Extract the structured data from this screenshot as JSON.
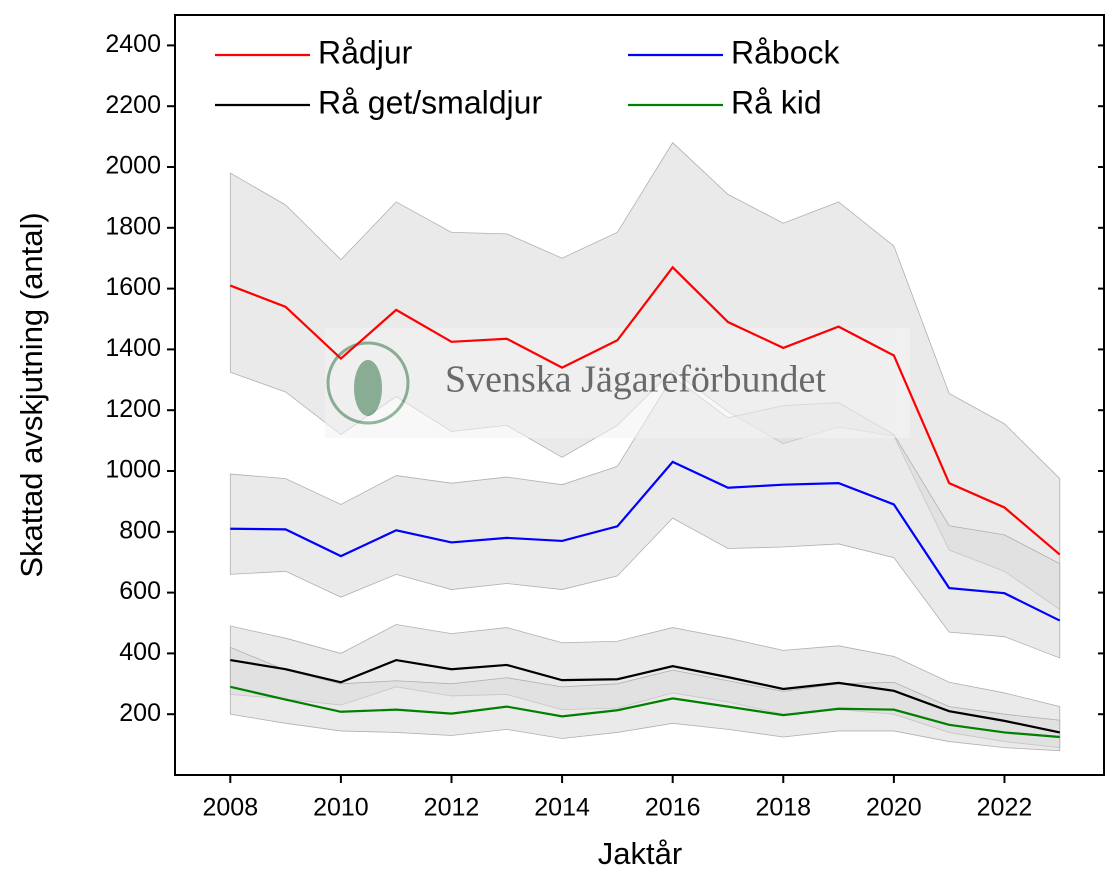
{
  "chart_data": {
    "type": "line",
    "x_label": "Jaktår",
    "y_label": "Skattad avskjutning (antal)",
    "watermark": "Svenska Jägareförbundet",
    "x": [
      2008,
      2009,
      2010,
      2011,
      2012,
      2013,
      2014,
      2015,
      2016,
      2017,
      2018,
      2019,
      2020,
      2021,
      2022,
      2023
    ],
    "xlim": [
      2007,
      2023.8
    ],
    "xticks": [
      2008,
      2010,
      2012,
      2014,
      2016,
      2018,
      2020,
      2022
    ],
    "ylim": [
      0,
      2500
    ],
    "yticks": [
      200,
      400,
      600,
      800,
      1000,
      1200,
      1400,
      1600,
      1800,
      2000,
      2200,
      2400
    ],
    "band_color": "#d8d8d8",
    "series": [
      {
        "name": "Rådjur",
        "color": "#ff0000",
        "values": [
          1610,
          1540,
          1370,
          1530,
          1425,
          1435,
          1340,
          1430,
          1670,
          1490,
          1405,
          1475,
          1380,
          960,
          880,
          725
        ],
        "upper": [
          1980,
          1875,
          1695,
          1885,
          1785,
          1780,
          1700,
          1785,
          2080,
          1910,
          1815,
          1885,
          1740,
          1255,
          1155,
          975
        ],
        "lower": [
          1325,
          1260,
          1120,
          1245,
          1130,
          1150,
          1045,
          1150,
          1330,
          1195,
          1090,
          1145,
          1115,
          740,
          670,
          545
        ]
      },
      {
        "name": "Råbock",
        "color": "#0000ff",
        "values": [
          810,
          808,
          720,
          805,
          765,
          780,
          770,
          818,
          1030,
          945,
          955,
          960,
          890,
          615,
          598,
          508
        ],
        "upper": [
          990,
          975,
          890,
          985,
          960,
          980,
          955,
          1015,
          1310,
          1175,
          1215,
          1225,
          1120,
          820,
          790,
          695
        ],
        "lower": [
          660,
          670,
          585,
          660,
          610,
          630,
          610,
          655,
          845,
          745,
          750,
          760,
          715,
          470,
          455,
          385
        ]
      },
      {
        "name": "Rå get/smaldjur",
        "color": "#000000",
        "values": [
          378,
          348,
          305,
          378,
          348,
          362,
          312,
          315,
          358,
          322,
          283,
          303,
          277,
          210,
          178,
          140
        ],
        "upper": [
          490,
          450,
          400,
          495,
          465,
          485,
          435,
          440,
          485,
          450,
          410,
          425,
          390,
          305,
          270,
          225
        ],
        "lower": [
          265,
          250,
          230,
          290,
          260,
          265,
          215,
          220,
          270,
          240,
          200,
          215,
          200,
          140,
          110,
          90
        ]
      },
      {
        "name": "Rå kid",
        "color": "#008000",
        "values": [
          290,
          248,
          208,
          215,
          202,
          225,
          193,
          213,
          252,
          225,
          197,
          218,
          215,
          165,
          140,
          125
        ],
        "upper": [
          420,
          345,
          300,
          310,
          300,
          320,
          290,
          300,
          345,
          310,
          275,
          300,
          305,
          225,
          200,
          180
        ],
        "lower": [
          200,
          170,
          145,
          140,
          130,
          150,
          120,
          140,
          170,
          150,
          125,
          145,
          145,
          110,
          90,
          80
        ]
      }
    ]
  }
}
